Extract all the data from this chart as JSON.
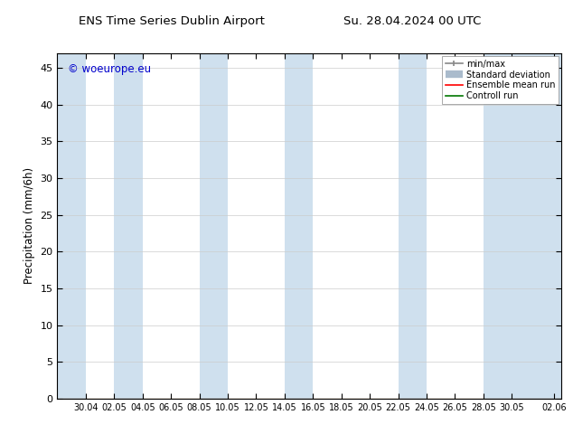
{
  "title_left": "ENS Time Series Dublin Airport",
  "title_right": "Su. 28.04.2024 00 UTC",
  "ylabel": "Precipitation (mm/6h)",
  "ylim": [
    0,
    47
  ],
  "yticks": [
    0,
    5,
    10,
    15,
    20,
    25,
    30,
    35,
    40,
    45
  ],
  "xtick_labels": [
    "30.04",
    "02.05",
    "04.05",
    "06.05",
    "08.05",
    "10.05",
    "12.05",
    "14.05",
    "16.05",
    "18.05",
    "20.05",
    "22.05",
    "24.05",
    "26.05",
    "28.05",
    "30.05",
    "02.06"
  ],
  "shading_color": "#cfe0ee",
  "background_color": "#ffffff",
  "watermark_text": "© woeurope.eu",
  "watermark_color": "#0000cc",
  "legend_items": [
    {
      "label": "min/max",
      "color": "#999999",
      "style": "minmax"
    },
    {
      "label": "Standard deviation",
      "color": "#aabbcc",
      "style": "fill"
    },
    {
      "label": "Ensemble mean run",
      "color": "#ff0000",
      "style": "line"
    },
    {
      "label": "Controll run",
      "color": "#007700",
      "style": "line"
    }
  ],
  "band_ranges": [
    [
      0,
      2
    ],
    [
      4,
      6
    ],
    [
      10,
      12
    ],
    [
      16,
      18
    ],
    [
      24,
      26
    ],
    [
      30,
      35.5
    ]
  ],
  "x_min": 0,
  "x_max": 35.5,
  "xtick_positions": [
    2,
    4,
    6,
    8,
    10,
    12,
    14,
    16,
    18,
    20,
    22,
    24,
    26,
    28,
    30,
    32,
    35
  ]
}
